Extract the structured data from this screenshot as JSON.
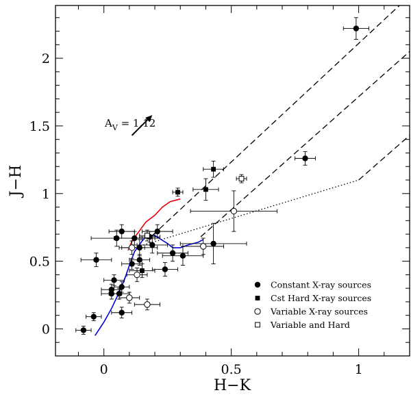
{
  "chart_data": {
    "type": "scatter",
    "title": "",
    "xlabel": "H−K",
    "ylabel": "J−H",
    "xlim": [
      -0.19,
      1.2
    ],
    "ylim": [
      -0.2,
      2.39
    ],
    "x_ticks": [
      0,
      0.5,
      1
    ],
    "x_tick_labels": [
      "0",
      "0.5",
      "1"
    ],
    "y_ticks": [
      0,
      0.5,
      1,
      1.5,
      2
    ],
    "y_tick_labels": [
      "0",
      "0.5",
      "1",
      "1.5",
      "2"
    ],
    "grid": false,
    "legend_position": "lower-right",
    "annotation": {
      "label_main": "A",
      "label_sub": "V",
      "label_rest": " = 1.12",
      "arrow_from": [
        0.11,
        1.43
      ],
      "arrow_to": [
        0.19,
        1.58
      ]
    },
    "legend": [
      {
        "label": "Constant X-ray sources",
        "marker": "filled-circle"
      },
      {
        "label": "Cst Hard X-ray sources",
        "marker": "filled-square"
      },
      {
        "label": "Variable X-ray sources",
        "marker": "open-circle"
      },
      {
        "label": "Variable and Hard",
        "marker": "open-square"
      }
    ],
    "series": [
      {
        "name": "Constant X-ray sources",
        "marker": "filled-circle",
        "points": [
          {
            "x": 0.99,
            "y": 2.22,
            "xerr": 0.05,
            "yerr": 0.08
          },
          {
            "x": 0.79,
            "y": 1.26,
            "xerr": 0.04,
            "yerr": 0.05
          },
          {
            "x": 0.07,
            "y": 0.72,
            "xerr": 0.05,
            "yerr": 0.05
          },
          {
            "x": 0.21,
            "y": 0.72,
            "xerr": 0.06,
            "yerr": 0.05
          },
          {
            "x": 0.05,
            "y": 0.67,
            "xerr": 0.1,
            "yerr": 0.06
          },
          {
            "x": 0.12,
            "y": 0.67,
            "xerr": 0.08,
            "yerr": 0.05
          },
          {
            "x": 0.18,
            "y": 0.68,
            "xerr": 0.04,
            "yerr": 0.04
          },
          {
            "x": 0.43,
            "y": 0.63,
            "xerr": 0.13,
            "yerr": 0.15
          },
          {
            "x": 0.19,
            "y": 0.62,
            "xerr": 0.06,
            "yerr": 0.06
          },
          {
            "x": 0.14,
            "y": 0.6,
            "xerr": 0.07,
            "yerr": 0.06
          },
          {
            "x": 0.27,
            "y": 0.56,
            "xerr": 0.06,
            "yerr": 0.06
          },
          {
            "x": 0.31,
            "y": 0.54,
            "xerr": 0.08,
            "yerr": 0.07
          },
          {
            "x": -0.03,
            "y": 0.51,
            "xerr": 0.06,
            "yerr": 0.05
          },
          {
            "x": 0.14,
            "y": 0.51,
            "xerr": 0.04,
            "yerr": 0.04
          },
          {
            "x": 0.11,
            "y": 0.48,
            "xerr": 0.04,
            "yerr": 0.04
          },
          {
            "x": 0.24,
            "y": 0.44,
            "xerr": 0.05,
            "yerr": 0.05
          },
          {
            "x": 0.04,
            "y": 0.36,
            "xerr": 0.04,
            "yerr": 0.04
          },
          {
            "x": 0.07,
            "y": 0.31,
            "xerr": 0.03,
            "yerr": 0.04
          },
          {
            "x": 0.03,
            "y": 0.29,
            "xerr": 0.04,
            "yerr": 0.04
          },
          {
            "x": 0.03,
            "y": 0.26,
            "xerr": 0.04,
            "yerr": 0.04
          },
          {
            "x": 0.06,
            "y": 0.26,
            "xerr": 0.04,
            "yerr": 0.04
          },
          {
            "x": 0.07,
            "y": 0.12,
            "xerr": 0.04,
            "yerr": 0.04
          },
          {
            "x": -0.04,
            "y": 0.09,
            "xerr": 0.03,
            "yerr": 0.03
          },
          {
            "x": -0.08,
            "y": -0.01,
            "xerr": 0.03,
            "yerr": 0.03
          }
        ]
      },
      {
        "name": "Cst Hard X-ray sources",
        "marker": "filled-square",
        "points": [
          {
            "x": 0.43,
            "y": 1.18,
            "xerr": 0.04,
            "yerr": 0.06
          },
          {
            "x": 0.4,
            "y": 1.03,
            "xerr": 0.05,
            "yerr": 0.08
          },
          {
            "x": 0.29,
            "y": 1.01,
            "xerr": 0.02,
            "yerr": 0.03
          },
          {
            "x": 0.15,
            "y": 0.43,
            "xerr": 0.05,
            "yerr": 0.05
          }
        ]
      },
      {
        "name": "Variable X-ray sources",
        "marker": "open-circle",
        "points": [
          {
            "x": 0.51,
            "y": 0.87,
            "xerr": 0.17,
            "yerr": 0.15
          },
          {
            "x": 0.39,
            "y": 0.61,
            "xerr": 0.08,
            "yerr": 0.06
          },
          {
            "x": 0.13,
            "y": 0.4,
            "xerr": 0.04,
            "yerr": 0.05
          },
          {
            "x": 0.1,
            "y": 0.23,
            "xerr": 0.04,
            "yerr": 0.04
          },
          {
            "x": 0.17,
            "y": 0.18,
            "xerr": 0.05,
            "yerr": 0.04
          },
          {
            "x": 0.11,
            "y": 0.6,
            "xerr": 0.05,
            "yerr": 0.05
          }
        ]
      },
      {
        "name": "Variable and Hard",
        "marker": "open-square",
        "points": [
          {
            "x": 0.54,
            "y": 1.11,
            "xerr": 0.02,
            "yerr": 0.03
          },
          {
            "x": 0.17,
            "y": 0.69,
            "xerr": 0.03,
            "yerr": 0.04
          }
        ]
      }
    ],
    "lines": [
      {
        "name": "dashed-upper",
        "color": "#000000",
        "style": "dashed",
        "points": [
          [
            0.19,
            0.69
          ],
          [
            1.16,
            2.39
          ]
        ]
      },
      {
        "name": "dashed-middle",
        "color": "#000000",
        "style": "dashed",
        "points": [
          [
            0.38,
            0.68
          ],
          [
            1.2,
            2.05
          ]
        ]
      },
      {
        "name": "dashed-lower",
        "color": "#000000",
        "style": "dashed",
        "points": [
          [
            1.0,
            1.1
          ],
          [
            1.2,
            1.43
          ]
        ]
      },
      {
        "name": "dotted-ctts-locus",
        "color": "#000000",
        "style": "dotted",
        "points": [
          [
            0.12,
            0.6
          ],
          [
            1.0,
            1.1
          ]
        ]
      },
      {
        "name": "giant-branch-red",
        "color": "#e8000b",
        "style": "solid",
        "points": [
          [
            0.095,
            0.58
          ],
          [
            0.11,
            0.65
          ],
          [
            0.13,
            0.7
          ],
          [
            0.165,
            0.79
          ],
          [
            0.2,
            0.84
          ],
          [
            0.23,
            0.9
          ],
          [
            0.26,
            0.94
          ],
          [
            0.3,
            0.96
          ]
        ]
      },
      {
        "name": "dwarf-branch-blue",
        "color": "#0000dd",
        "style": "solid",
        "points": [
          [
            -0.035,
            -0.05
          ],
          [
            0.0,
            0.05
          ],
          [
            0.03,
            0.15
          ],
          [
            0.055,
            0.25
          ],
          [
            0.08,
            0.36
          ],
          [
            0.1,
            0.47
          ],
          [
            0.12,
            0.57
          ],
          [
            0.15,
            0.65
          ],
          [
            0.17,
            0.69
          ],
          [
            0.2,
            0.69
          ],
          [
            0.225,
            0.66
          ],
          [
            0.25,
            0.63
          ],
          [
            0.27,
            0.6
          ],
          [
            0.3,
            0.6
          ],
          [
            0.33,
            0.62
          ],
          [
            0.37,
            0.64
          ],
          [
            0.39,
            0.66
          ]
        ]
      }
    ]
  }
}
